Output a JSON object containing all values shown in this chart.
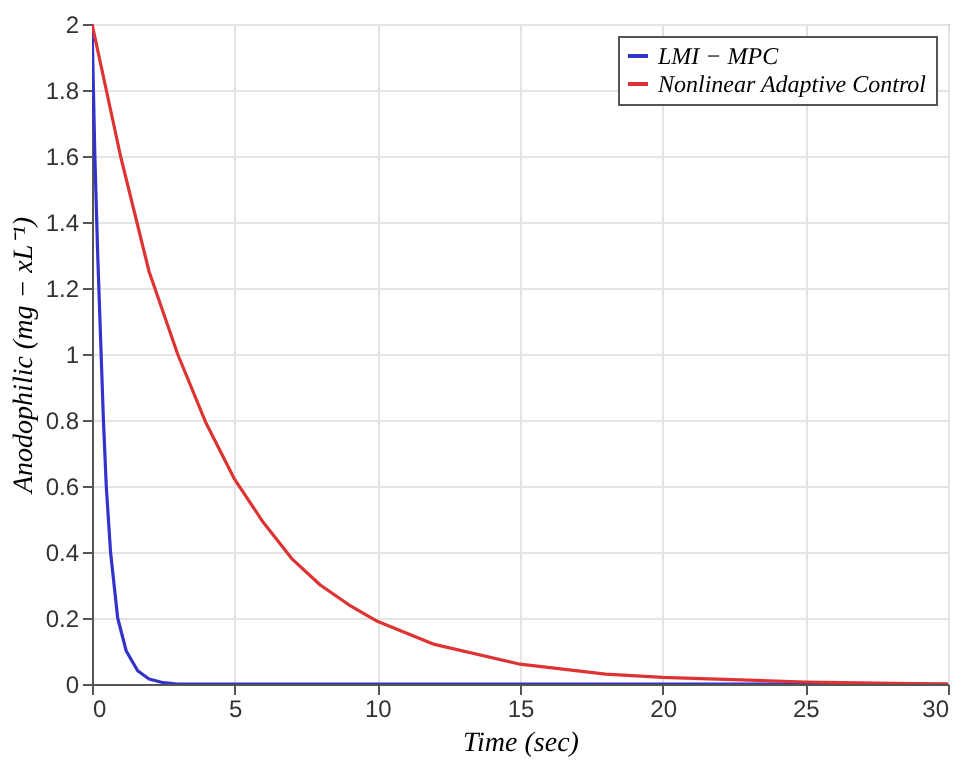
{
  "chart_data": {
    "type": "line",
    "xlabel": "Time (sec)",
    "ylabel": "Anodophilic (mg − xL⁻¹)",
    "xlim": [
      0,
      30
    ],
    "xticks": [
      0,
      5,
      10,
      15,
      20,
      25,
      30
    ],
    "ylim": [
      0,
      2
    ],
    "yticks": [
      0,
      0.2,
      0.4,
      0.6,
      0.8,
      1,
      1.2,
      1.4,
      1.6,
      1.8,
      2
    ],
    "grid": true,
    "legend": "top right",
    "line_style": "solid",
    "series": [
      {
        "name": "LMI − MPC",
        "color": "#3333cc",
        "x": [
          0,
          0.1,
          0.2,
          0.3,
          0.4,
          0.5,
          0.65,
          0.9,
          1.2,
          1.6,
          2,
          2.5,
          3,
          30
        ],
        "values": [
          2,
          1.6,
          1.3,
          1.05,
          0.8,
          0.6,
          0.4,
          0.2,
          0.1,
          0.04,
          0.015,
          0.004,
          0,
          0
        ]
      },
      {
        "name": "Nonlinear Adaptive Control",
        "color": "#dd3333",
        "x": [
          0,
          1,
          2,
          3,
          4,
          5,
          6,
          7,
          8,
          9,
          10,
          12,
          15,
          18,
          20,
          25,
          30
        ],
        "values": [
          2,
          1.6,
          1.25,
          1.0,
          0.79,
          0.62,
          0.49,
          0.38,
          0.3,
          0.24,
          0.19,
          0.12,
          0.06,
          0.03,
          0.02,
          0.006,
          0
        ]
      }
    ]
  }
}
